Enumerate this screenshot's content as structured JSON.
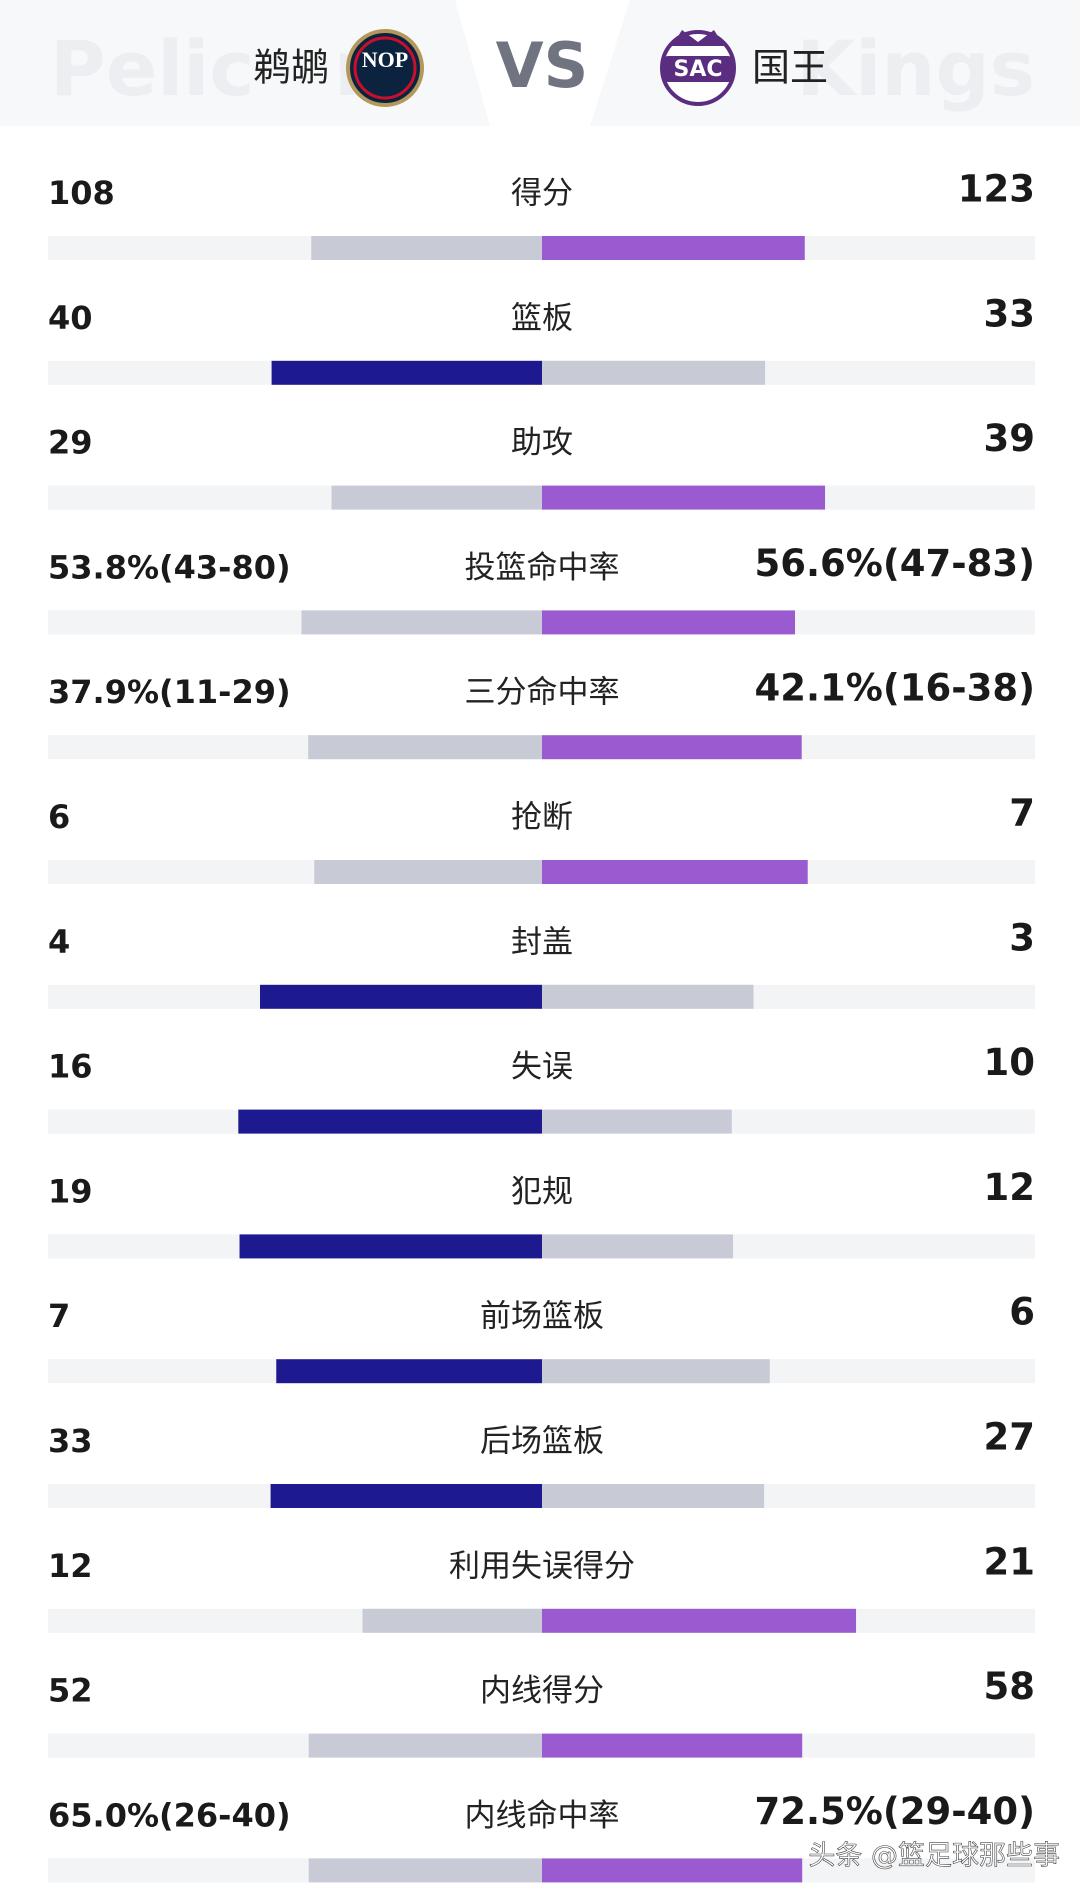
{
  "chart_data": {
    "type": "diverging-bar",
    "home_watermark": "Pelicans",
    "away_watermark": "Kings",
    "home_logo": "NOP",
    "away_logo": "SAC",
    "vs_text": "VS",
    "footer_watermark": "头条 @篮足球那些事",
    "categories": [
      "得分",
      "篮板",
      "助攻",
      "投篮命中率",
      "三分命中率",
      "抢断",
      "封盖",
      "失误",
      "犯规",
      "前场篮板",
      "后场篮板",
      "利用失误得分",
      "内线得分",
      "内线命中率"
    ],
    "series": [
      {
        "name": "鹈鹕",
        "color": "#1c1a8e",
        "values": [
          108,
          40,
          29,
          53.8,
          37.9,
          6,
          4,
          16,
          19,
          7,
          33,
          12,
          52,
          65.0
        ],
        "value_labels": [
          "108",
          "40",
          "29",
          "53.8%(43-80)",
          "37.9%(11-29)",
          "6",
          "4",
          "16",
          "19",
          "7",
          "33",
          "12",
          "52",
          "65.0%(26-40)"
        ]
      },
      {
        "name": "国王",
        "color": "#9b5bd0",
        "values": [
          123,
          33,
          39,
          56.6,
          42.1,
          7,
          3,
          10,
          12,
          6,
          27,
          21,
          58,
          72.5
        ],
        "value_labels": [
          "123",
          "33",
          "39",
          "56.6%(47-83)",
          "42.1%(16-38)",
          "7",
          "3",
          "10",
          "12",
          "6",
          "27",
          "21",
          "58",
          "72.5%(29-40)"
        ]
      }
    ],
    "loser_color": "#c8cad6",
    "track_color": "#f3f4f6"
  }
}
